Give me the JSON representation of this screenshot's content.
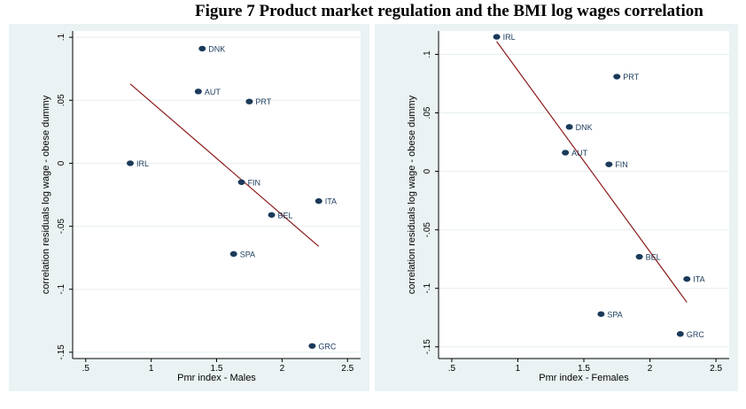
{
  "figure": {
    "title": "Figure 7 Product market regulation and the BMI log wages correlation"
  },
  "colors": {
    "panel_bg": "#eaf2f3",
    "plot_bg": "#ffffff",
    "grid": "#e6eef0",
    "marker": "#1a3a5a",
    "fit_line": "#8b1a1a"
  },
  "chart_data": [
    {
      "type": "scatter",
      "xlabel": "Pmr index - Males",
      "ylabel": "correlation residuals log wage - obese dummy",
      "xlim": [
        0.4,
        2.6
      ],
      "ylim": [
        -0.155,
        0.105
      ],
      "xticks": [
        0.5,
        1,
        1.5,
        2,
        2.5
      ],
      "xtick_labels": [
        ".5",
        "1",
        "1.5",
        "2",
        "2.5"
      ],
      "yticks": [
        -0.15,
        -0.1,
        -0.05,
        0,
        0.05,
        0.1
      ],
      "ytick_labels": [
        "-.15",
        "-.1",
        "-.05",
        "0",
        ".05",
        ".1"
      ],
      "grid": true,
      "points": [
        {
          "label": "DNK",
          "x": 1.39,
          "y": 0.091
        },
        {
          "label": "AUT",
          "x": 1.36,
          "y": 0.057
        },
        {
          "label": "PRT",
          "x": 1.75,
          "y": 0.049
        },
        {
          "label": "IRL",
          "x": 0.84,
          "y": 0.0
        },
        {
          "label": "FIN",
          "x": 1.69,
          "y": -0.015
        },
        {
          "label": "ITA",
          "x": 2.28,
          "y": -0.03
        },
        {
          "label": "BEL",
          "x": 1.92,
          "y": -0.041
        },
        {
          "label": "SPA",
          "x": 1.63,
          "y": -0.072
        },
        {
          "label": "GRC",
          "x": 2.23,
          "y": -0.145
        }
      ],
      "fit_line": {
        "x": [
          0.84,
          2.28
        ],
        "y": [
          0.063,
          -0.066
        ]
      }
    },
    {
      "type": "scatter",
      "xlabel": "Pmr index - Females",
      "ylabel": "correlation residuals log wage - obese dummy",
      "xlim": [
        0.4,
        2.6
      ],
      "ylim": [
        -0.16,
        0.12
      ],
      "xticks": [
        0.5,
        1,
        1.5,
        2,
        2.5
      ],
      "xtick_labels": [
        ".5",
        "1",
        "1.5",
        "2",
        "2.5"
      ],
      "yticks": [
        -0.15,
        -0.1,
        -0.05,
        0,
        0.05,
        0.1
      ],
      "ytick_labels": [
        "-.15",
        "-.1",
        "-.05",
        "0",
        ".05",
        ".1"
      ],
      "grid": true,
      "points": [
        {
          "label": "IRL",
          "x": 0.84,
          "y": 0.115
        },
        {
          "label": "PRT",
          "x": 1.75,
          "y": 0.081
        },
        {
          "label": "DNK",
          "x": 1.39,
          "y": 0.038
        },
        {
          "label": "AUT",
          "x": 1.36,
          "y": 0.016
        },
        {
          "label": "FIN",
          "x": 1.69,
          "y": 0.006
        },
        {
          "label": "BEL",
          "x": 1.92,
          "y": -0.073
        },
        {
          "label": "ITA",
          "x": 2.28,
          "y": -0.092
        },
        {
          "label": "SPA",
          "x": 1.63,
          "y": -0.122
        },
        {
          "label": "GRC",
          "x": 2.23,
          "y": -0.139
        }
      ],
      "fit_line": {
        "x": [
          0.84,
          2.28
        ],
        "y": [
          0.111,
          -0.112
        ]
      }
    }
  ]
}
